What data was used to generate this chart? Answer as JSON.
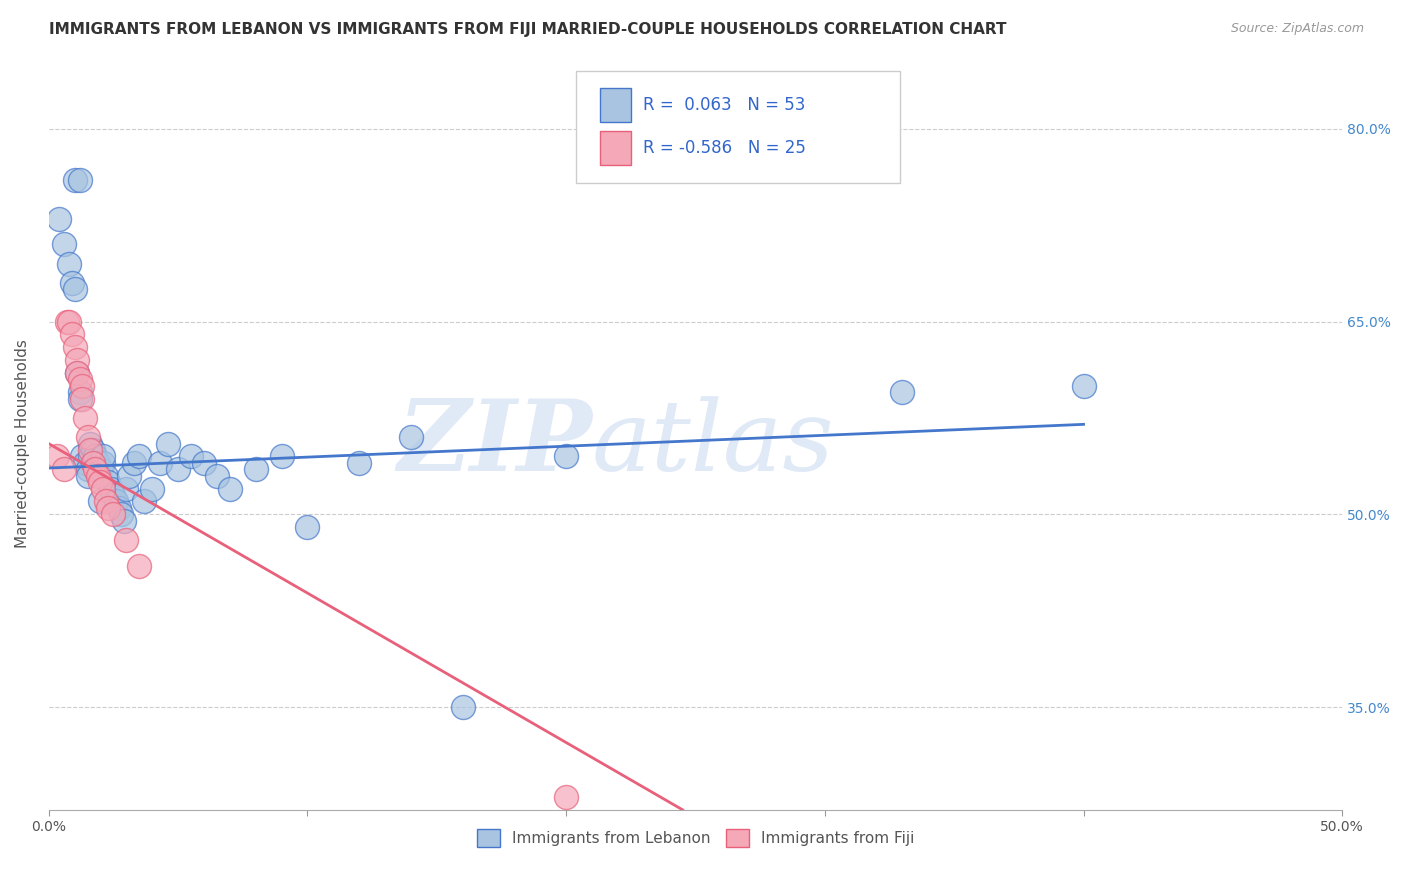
{
  "title": "IMMIGRANTS FROM LEBANON VS IMMIGRANTS FROM FIJI MARRIED-COUPLE HOUSEHOLDS CORRELATION CHART",
  "source": "Source: ZipAtlas.com",
  "xlabel_lebanon": "Immigrants from Lebanon",
  "xlabel_fiji": "Immigrants from Fiji",
  "ylabel": "Married-couple Households",
  "xlim": [
    0.0,
    0.5
  ],
  "ylim": [
    0.27,
    0.84
  ],
  "xticks": [
    0.0,
    0.1,
    0.2,
    0.3,
    0.4,
    0.5
  ],
  "yticks": [
    0.35,
    0.5,
    0.65,
    0.8
  ],
  "ytick_labels": [
    "35.0%",
    "50.0%",
    "65.0%",
    "80.0%"
  ],
  "xtick_labels": [
    "0.0%",
    "",
    "",
    "",
    "",
    "50.0%"
  ],
  "r_lebanon": 0.063,
  "n_lebanon": 53,
  "r_fiji": -0.586,
  "n_fiji": 25,
  "lebanon_color": "#a8c4e0",
  "fiji_color": "#f4a8b8",
  "lebanon_line_color": "#4477cc",
  "fiji_line_color": "#e8607a",
  "lebanon_x": [
    0.004,
    0.01,
    0.012,
    0.006,
    0.008,
    0.009,
    0.01,
    0.011,
    0.012,
    0.012,
    0.013,
    0.014,
    0.015,
    0.015,
    0.016,
    0.016,
    0.017,
    0.018,
    0.019,
    0.02,
    0.02,
    0.021,
    0.021,
    0.022,
    0.023,
    0.024,
    0.025,
    0.026,
    0.027,
    0.028,
    0.029,
    0.03,
    0.031,
    0.033,
    0.035,
    0.037,
    0.04,
    0.043,
    0.046,
    0.05,
    0.055,
    0.06,
    0.065,
    0.07,
    0.08,
    0.09,
    0.1,
    0.12,
    0.14,
    0.16,
    0.2,
    0.33,
    0.4
  ],
  "lebanon_y": [
    0.73,
    0.76,
    0.76,
    0.71,
    0.695,
    0.68,
    0.675,
    0.61,
    0.595,
    0.59,
    0.545,
    0.54,
    0.535,
    0.53,
    0.545,
    0.555,
    0.55,
    0.545,
    0.54,
    0.535,
    0.51,
    0.54,
    0.545,
    0.53,
    0.525,
    0.52,
    0.515,
    0.51,
    0.505,
    0.5,
    0.495,
    0.52,
    0.53,
    0.54,
    0.545,
    0.51,
    0.52,
    0.54,
    0.555,
    0.535,
    0.545,
    0.54,
    0.53,
    0.52,
    0.535,
    0.545,
    0.49,
    0.54,
    0.56,
    0.35,
    0.545,
    0.595,
    0.6
  ],
  "fiji_x": [
    0.003,
    0.006,
    0.007,
    0.008,
    0.009,
    0.01,
    0.011,
    0.011,
    0.012,
    0.013,
    0.013,
    0.014,
    0.015,
    0.016,
    0.017,
    0.018,
    0.019,
    0.02,
    0.021,
    0.022,
    0.023,
    0.025,
    0.03,
    0.035,
    0.2
  ],
  "fiji_y": [
    0.545,
    0.535,
    0.65,
    0.65,
    0.64,
    0.63,
    0.62,
    0.61,
    0.605,
    0.6,
    0.59,
    0.575,
    0.56,
    0.55,
    0.54,
    0.535,
    0.53,
    0.525,
    0.52,
    0.51,
    0.505,
    0.5,
    0.48,
    0.46,
    0.28
  ],
  "leb_trend_x0": 0.0,
  "leb_trend_y0": 0.536,
  "leb_trend_x1": 0.4,
  "leb_trend_y1": 0.57,
  "fiji_trend_x0": 0.0,
  "fiji_trend_y0": 0.555,
  "fiji_trend_x1": 0.245,
  "fiji_trend_y1": 0.27,
  "watermark_zip": "ZIP",
  "watermark_atlas": "atlas",
  "background_color": "#ffffff",
  "grid_color": "#cccccc",
  "title_fontsize": 11,
  "axis_label_fontsize": 11,
  "tick_fontsize": 10,
  "legend_fontsize": 12
}
